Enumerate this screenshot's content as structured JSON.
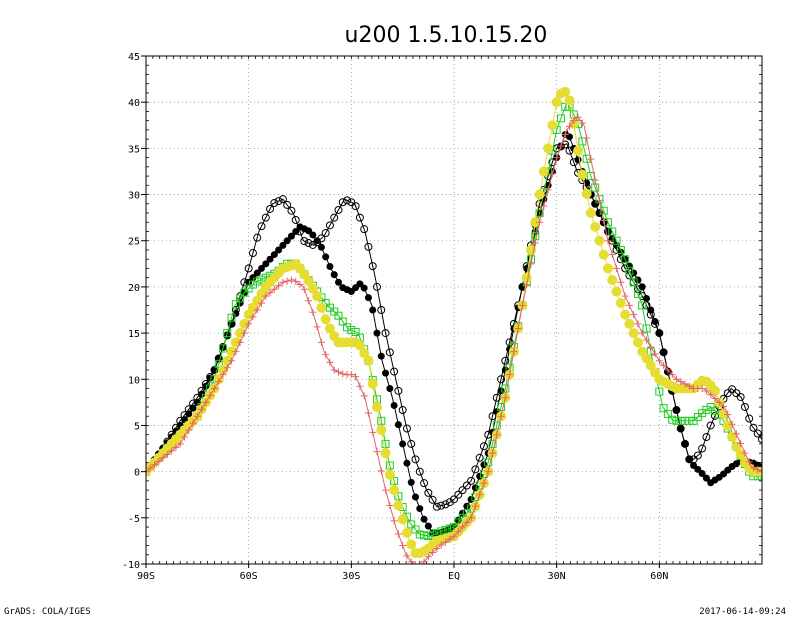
{
  "chart_data": {
    "type": "line",
    "title": "u200 1.5.10.15.20",
    "xlabel": "",
    "ylabel": "",
    "xlim": [
      -90,
      90
    ],
    "ylim": [
      -10,
      45
    ],
    "grid": true,
    "x_ticks": [
      {
        "value": -90,
        "label": "90S"
      },
      {
        "value": -60,
        "label": "60S"
      },
      {
        "value": -30,
        "label": "30S"
      },
      {
        "value": 0,
        "label": "EQ"
      },
      {
        "value": 30,
        "label": "30N"
      },
      {
        "value": 60,
        "label": "60N"
      }
    ],
    "y_ticks": [
      -10,
      -5,
      0,
      5,
      10,
      15,
      20,
      25,
      30,
      35,
      40,
      45
    ],
    "series": [
      {
        "color": "#000000",
        "marker": "open-circle",
        "points": [
          [
            -90,
            0
          ],
          [
            -85,
            2.5
          ],
          [
            -80,
            5.5
          ],
          [
            -75,
            8
          ],
          [
            -70,
            11
          ],
          [
            -65,
            16
          ],
          [
            -60,
            22
          ],
          [
            -57,
            26
          ],
          [
            -53,
            29
          ],
          [
            -50,
            29.5
          ],
          [
            -47,
            28
          ],
          [
            -44,
            25
          ],
          [
            -41,
            24.5
          ],
          [
            -38,
            25.5
          ],
          [
            -35,
            27.5
          ],
          [
            -32,
            29.5
          ],
          [
            -29,
            29
          ],
          [
            -26,
            26
          ],
          [
            -23,
            21
          ],
          [
            -20,
            15
          ],
          [
            -17,
            10
          ],
          [
            -14,
            5
          ],
          [
            -11,
            1
          ],
          [
            -8,
            -2
          ],
          [
            -5,
            -3.8
          ],
          [
            -2,
            -3.5
          ],
          [
            0,
            -3
          ],
          [
            5,
            -1
          ],
          [
            10,
            4
          ],
          [
            15,
            12
          ],
          [
            20,
            20
          ],
          [
            25,
            29
          ],
          [
            30,
            35
          ],
          [
            33,
            35.5
          ],
          [
            36,
            32.5
          ],
          [
            40,
            30
          ],
          [
            45,
            26
          ],
          [
            50,
            22
          ],
          [
            55,
            19
          ],
          [
            60,
            15
          ],
          [
            63,
            10
          ],
          [
            66,
            5
          ],
          [
            69,
            1
          ],
          [
            72,
            2
          ],
          [
            75,
            5
          ],
          [
            78,
            7.5
          ],
          [
            81,
            9
          ],
          [
            84,
            8
          ],
          [
            87,
            5
          ],
          [
            90,
            3.5
          ]
        ]
      },
      {
        "color": "#000000",
        "marker": "filled-circle",
        "points": [
          [
            -90,
            0
          ],
          [
            -85,
            2.5
          ],
          [
            -80,
            5
          ],
          [
            -75,
            7.5
          ],
          [
            -70,
            11
          ],
          [
            -65,
            16
          ],
          [
            -60,
            20.5
          ],
          [
            -55,
            22.5
          ],
          [
            -50,
            24.5
          ],
          [
            -45,
            26.5
          ],
          [
            -42,
            26
          ],
          [
            -39,
            24.5
          ],
          [
            -36,
            22
          ],
          [
            -33,
            20
          ],
          [
            -30,
            19.5
          ],
          [
            -27,
            20.5
          ],
          [
            -24,
            18
          ],
          [
            -21,
            12
          ],
          [
            -18,
            8
          ],
          [
            -15,
            3
          ],
          [
            -12,
            -2
          ],
          [
            -9,
            -5
          ],
          [
            -6,
            -6.8
          ],
          [
            -3,
            -6.5
          ],
          [
            0,
            -6
          ],
          [
            5,
            -3
          ],
          [
            10,
            2
          ],
          [
            15,
            11
          ],
          [
            20,
            20
          ],
          [
            25,
            28
          ],
          [
            30,
            34
          ],
          [
            33,
            37
          ],
          [
            36,
            34
          ],
          [
            40,
            30
          ],
          [
            45,
            26
          ],
          [
            50,
            23
          ],
          [
            55,
            20
          ],
          [
            60,
            15
          ],
          [
            63,
            10
          ],
          [
            66,
            5
          ],
          [
            69,
            1
          ],
          [
            72,
            0
          ],
          [
            75,
            -1.2
          ],
          [
            78,
            -0.5
          ],
          [
            81,
            0.5
          ],
          [
            84,
            1.2
          ],
          [
            87,
            1
          ],
          [
            90,
            0.5
          ]
        ]
      },
      {
        "color": "#22cc22",
        "marker": "open-square",
        "points": [
          [
            -90,
            0
          ],
          [
            -85,
            2
          ],
          [
            -80,
            4
          ],
          [
            -75,
            6
          ],
          [
            -70,
            10
          ],
          [
            -67,
            14
          ],
          [
            -64,
            18
          ],
          [
            -61,
            19.5
          ],
          [
            -58,
            20.5
          ],
          [
            -55,
            21
          ],
          [
            -52,
            21.5
          ],
          [
            -49,
            22.5
          ],
          [
            -46,
            22.5
          ],
          [
            -43,
            21
          ],
          [
            -40,
            19.5
          ],
          [
            -37,
            18
          ],
          [
            -34,
            17
          ],
          [
            -31,
            15.5
          ],
          [
            -28,
            15
          ],
          [
            -25,
            12
          ],
          [
            -22,
            7
          ],
          [
            -19,
            1
          ],
          [
            -16,
            -3
          ],
          [
            -13,
            -5.5
          ],
          [
            -10,
            -6.8
          ],
          [
            -7,
            -7
          ],
          [
            -4,
            -6.5
          ],
          [
            0,
            -6
          ],
          [
            5,
            -4
          ],
          [
            10,
            1
          ],
          [
            15,
            9
          ],
          [
            20,
            18
          ],
          [
            25,
            28
          ],
          [
            30,
            37
          ],
          [
            33,
            40
          ],
          [
            36,
            38
          ],
          [
            40,
            32
          ],
          [
            45,
            27
          ],
          [
            50,
            23
          ],
          [
            55,
            18
          ],
          [
            58,
            12
          ],
          [
            61,
            7
          ],
          [
            64,
            5.5
          ],
          [
            67,
            5.5
          ],
          [
            70,
            5.5
          ],
          [
            73,
            6.5
          ],
          [
            75,
            7
          ],
          [
            78,
            6
          ],
          [
            81,
            4
          ],
          [
            84,
            1.5
          ],
          [
            87,
            -0.5
          ],
          [
            90,
            -0.5
          ]
        ]
      },
      {
        "color": "#e6dd33",
        "marker": "filled-circle-bold",
        "points": [
          [
            -90,
            0
          ],
          [
            -85,
            2
          ],
          [
            -80,
            4
          ],
          [
            -75,
            6
          ],
          [
            -70,
            9
          ],
          [
            -65,
            13
          ],
          [
            -60,
            17
          ],
          [
            -55,
            20
          ],
          [
            -50,
            22
          ],
          [
            -46,
            22.5
          ],
          [
            -43,
            21
          ],
          [
            -40,
            19
          ],
          [
            -37,
            16
          ],
          [
            -34,
            14
          ],
          [
            -31,
            14
          ],
          [
            -28,
            14
          ],
          [
            -25,
            12
          ],
          [
            -22,
            6
          ],
          [
            -19,
            0
          ],
          [
            -16,
            -4
          ],
          [
            -13,
            -7.5
          ],
          [
            -11,
            -9
          ],
          [
            -8,
            -8.5
          ],
          [
            -5,
            -7.5
          ],
          [
            0,
            -7
          ],
          [
            5,
            -5
          ],
          [
            10,
            0
          ],
          [
            15,
            8
          ],
          [
            20,
            18
          ],
          [
            25,
            30
          ],
          [
            30,
            40
          ],
          [
            32,
            41.5
          ],
          [
            34,
            40
          ],
          [
            37,
            33
          ],
          [
            40,
            28
          ],
          [
            45,
            22
          ],
          [
            50,
            17
          ],
          [
            55,
            13
          ],
          [
            60,
            10
          ],
          [
            65,
            9
          ],
          [
            70,
            9
          ],
          [
            73,
            10
          ],
          [
            76,
            9
          ],
          [
            79,
            6
          ],
          [
            82,
            3
          ],
          [
            85,
            1
          ],
          [
            87,
            0
          ],
          [
            90,
            0
          ]
        ]
      },
      {
        "color": "#e06666",
        "marker": "plus",
        "points": [
          [
            -90,
            0
          ],
          [
            -85,
            1.5
          ],
          [
            -80,
            3
          ],
          [
            -75,
            6
          ],
          [
            -70,
            9
          ],
          [
            -65,
            12
          ],
          [
            -60,
            16
          ],
          [
            -55,
            19
          ],
          [
            -50,
            20.5
          ],
          [
            -47,
            20.8
          ],
          [
            -44,
            20
          ],
          [
            -41,
            17
          ],
          [
            -38,
            13
          ],
          [
            -35,
            11
          ],
          [
            -32,
            10.5
          ],
          [
            -29,
            10.5
          ],
          [
            -26,
            8
          ],
          [
            -23,
            3
          ],
          [
            -20,
            -2
          ],
          [
            -17,
            -6
          ],
          [
            -14,
            -9
          ],
          [
            -12,
            -10
          ],
          [
            -10,
            -10.3
          ],
          [
            -7,
            -9
          ],
          [
            -4,
            -8
          ],
          [
            0,
            -7
          ],
          [
            5,
            -5
          ],
          [
            10,
            0
          ],
          [
            15,
            8
          ],
          [
            20,
            18
          ],
          [
            25,
            27
          ],
          [
            30,
            34
          ],
          [
            33,
            37
          ],
          [
            36,
            38.5
          ],
          [
            38,
            37.5
          ],
          [
            41,
            32
          ],
          [
            45,
            25
          ],
          [
            50,
            19
          ],
          [
            55,
            15
          ],
          [
            60,
            12
          ],
          [
            65,
            10
          ],
          [
            70,
            9
          ],
          [
            73,
            9
          ],
          [
            76,
            8
          ],
          [
            79,
            7
          ],
          [
            82,
            4.5
          ],
          [
            85,
            2
          ],
          [
            87,
            0.5
          ],
          [
            90,
            0
          ]
        ]
      }
    ]
  },
  "footer": {
    "left": "GrADS: COLA/IGES",
    "right": "2017-06-14-09:24"
  }
}
